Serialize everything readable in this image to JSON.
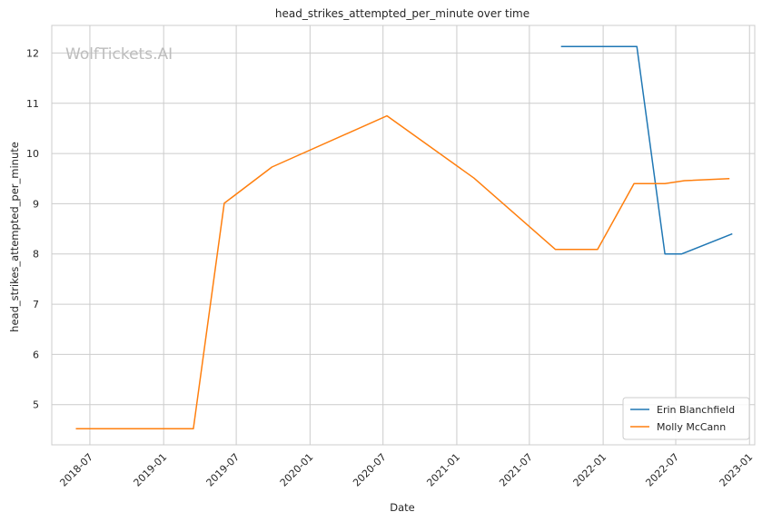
{
  "chart_data": {
    "type": "line",
    "title": "head_strikes_attempted_per_minute over time",
    "xlabel": "Date",
    "ylabel": "head_strikes_attempted_per_minute",
    "watermark": "WolfTickets.AI",
    "x_ticks": [
      "2018-07",
      "2019-01",
      "2019-07",
      "2020-01",
      "2020-07",
      "2021-01",
      "2021-07",
      "2022-01",
      "2022-07",
      "2023-01"
    ],
    "y_ticks": [
      5,
      6,
      7,
      8,
      9,
      10,
      11,
      12
    ],
    "xlim": [
      "2018-03-28",
      "2023-01-14"
    ],
    "ylim": [
      4.2,
      12.55
    ],
    "grid": true,
    "legend_position": "lower-right",
    "series": [
      {
        "name": "Erin Blanchfield",
        "color": "#1f77b4",
        "points": [
          {
            "x": "2021-09-18",
            "y": 12.13
          },
          {
            "x": "2022-03-26",
            "y": 12.13
          },
          {
            "x": "2022-06-04",
            "y": 8.0
          },
          {
            "x": "2022-07-16",
            "y": 8.0
          },
          {
            "x": "2022-11-19",
            "y": 8.4
          }
        ]
      },
      {
        "name": "Molly McCann",
        "color": "#ff7f0e",
        "points": [
          {
            "x": "2018-05-27",
            "y": 4.52
          },
          {
            "x": "2019-03-16",
            "y": 4.52
          },
          {
            "x": "2019-06-01",
            "y": 9.01
          },
          {
            "x": "2019-09-28",
            "y": 9.73
          },
          {
            "x": "2020-07-11",
            "y": 10.75
          },
          {
            "x": "2021-02-13",
            "y": 9.51
          },
          {
            "x": "2021-09-04",
            "y": 8.09
          },
          {
            "x": "2021-12-18",
            "y": 8.09
          },
          {
            "x": "2022-03-19",
            "y": 9.4
          },
          {
            "x": "2022-06-04",
            "y": 9.4
          },
          {
            "x": "2022-07-23",
            "y": 9.46
          },
          {
            "x": "2022-11-12",
            "y": 9.5
          }
        ]
      }
    ]
  }
}
